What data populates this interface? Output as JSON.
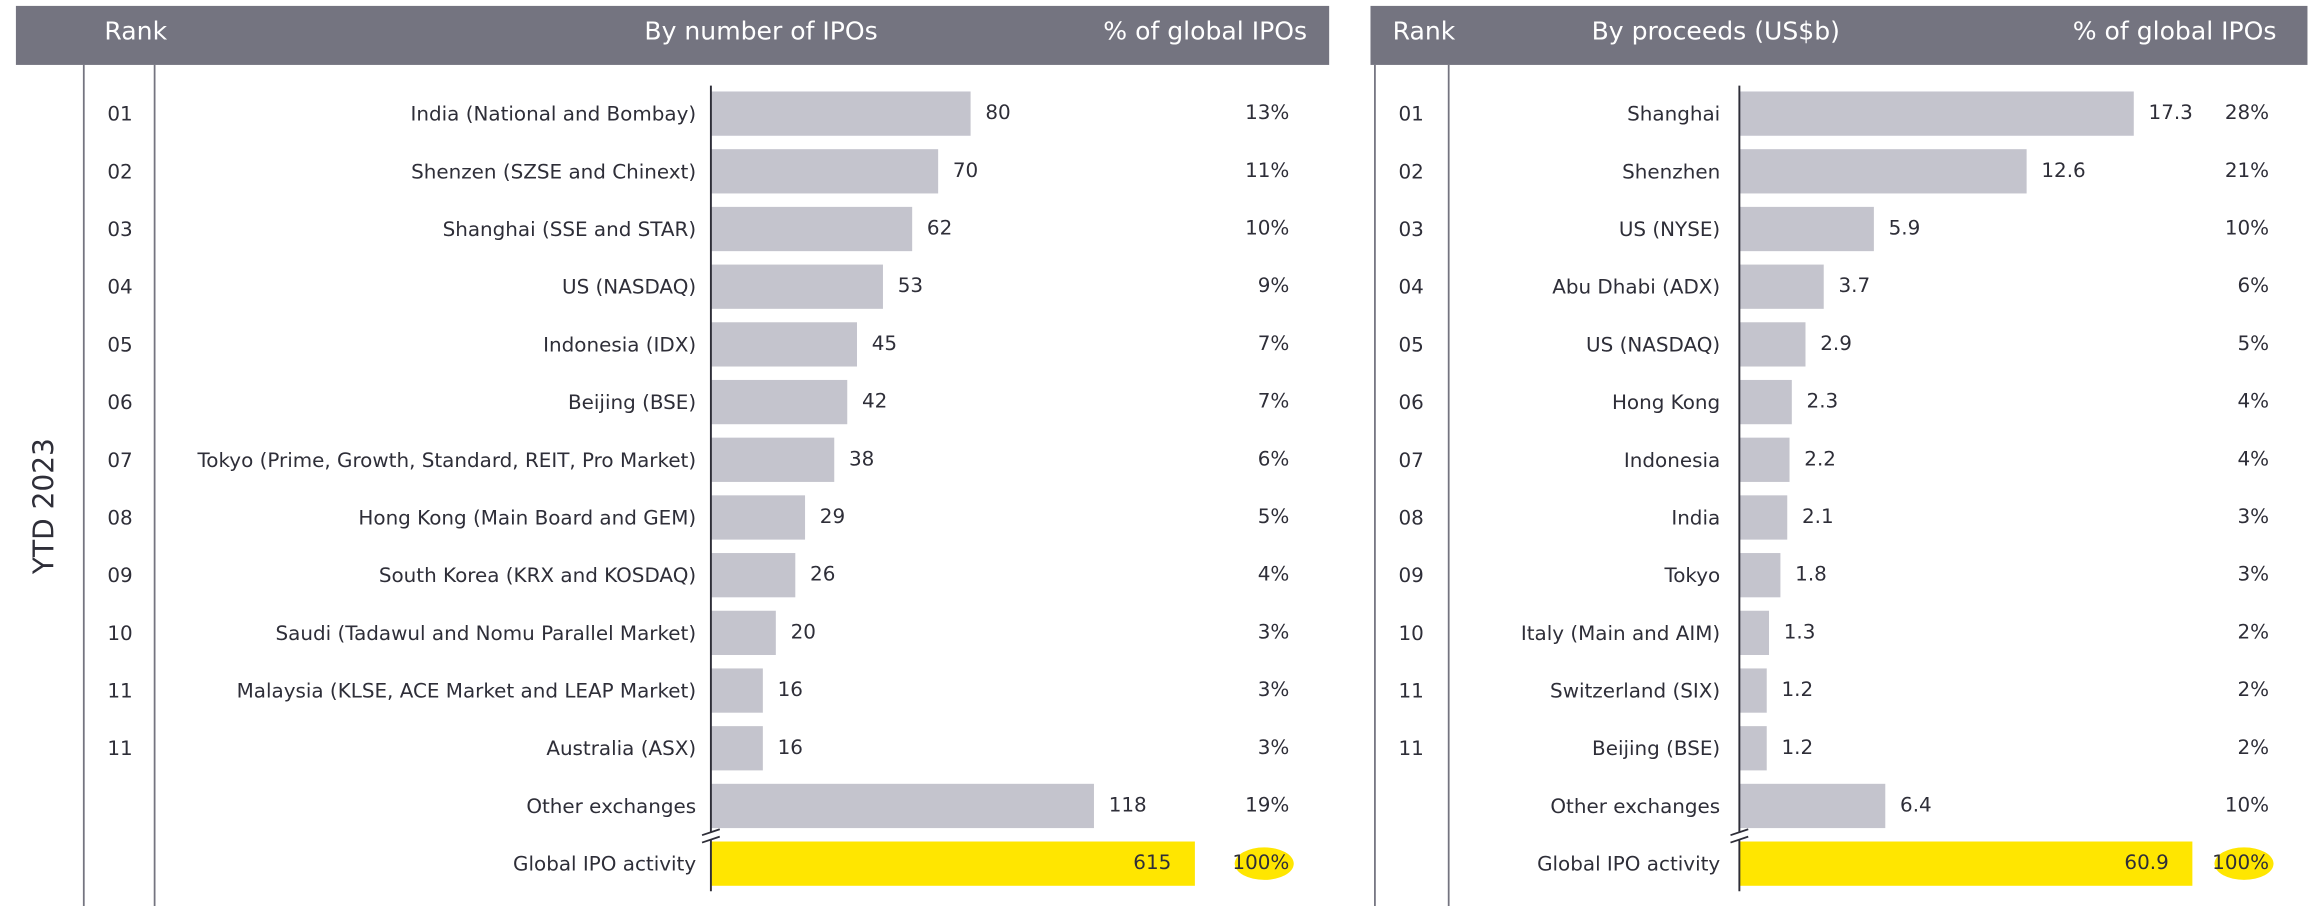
{
  "side_label": "YTD 2023",
  "chart_data": [
    {
      "type": "bar",
      "orientation": "horizontal",
      "headers": [
        "Rank",
        "By number of IPOs",
        "% of global IPOs"
      ],
      "ranks": [
        "01",
        "02",
        "03",
        "04",
        "05",
        "06",
        "07",
        "08",
        "09",
        "10",
        "11",
        "11",
        null
      ],
      "categories": [
        "India (National and Bombay)",
        "Shenzen (SZSE and Chinext)",
        "Shanghai (SSE and STAR)",
        "US (NASDAQ)",
        "Indonesia (IDX)",
        "Beijing (BSE)",
        "Tokyo (Prime, Growth, Standard, REIT, Pro Market)",
        "Hong Kong (Main Board and GEM)",
        "South Korea (KRX and KOSDAQ)",
        "Saudi (Tadawul and Nomu Parallel Market)",
        "Malaysia (KLSE, ACE Market and LEAP Market)",
        "Australia (ASX)",
        "Other exchanges"
      ],
      "values": [
        80,
        70,
        62,
        53,
        45,
        42,
        38,
        29,
        26,
        20,
        16,
        16,
        118
      ],
      "shares": [
        "13%",
        "11%",
        "10%",
        "9%",
        "7%",
        "7%",
        "6%",
        "5%",
        "4%",
        "3%",
        "3%",
        "3%",
        "19%"
      ],
      "total": {
        "label": "Global IPO activity",
        "value": 615,
        "share": "100%"
      },
      "color": "#c4c4cd",
      "total_color": "#ffe600",
      "xlim": [
        0,
        150
      ]
    },
    {
      "type": "bar",
      "orientation": "horizontal",
      "headers": [
        "Rank",
        "By proceeds (US$b)",
        "% of global IPOs"
      ],
      "ranks": [
        "01",
        "02",
        "03",
        "04",
        "05",
        "06",
        "07",
        "08",
        "09",
        "10",
        "11",
        "11",
        null
      ],
      "categories": [
        "Shanghai",
        "Shenzhen",
        "US (NYSE)",
        "Abu Dhabi (ADX)",
        "US (NASDAQ)",
        "Hong Kong",
        "Indonesia",
        "India",
        "Tokyo",
        "Italy (Main and AIM)",
        "Switzerland (SIX)",
        "Beijing (BSE)",
        "Other exchanges"
      ],
      "values": [
        17.3,
        12.6,
        5.9,
        3.7,
        2.9,
        2.3,
        2.2,
        2.1,
        1.8,
        1.3,
        1.2,
        1.2,
        6.4
      ],
      "shares": [
        "28%",
        "21%",
        "10%",
        "6%",
        "5%",
        "4%",
        "4%",
        "3%",
        "3%",
        "2%",
        "2%",
        "2%",
        "10%"
      ],
      "total": {
        "label": "Global IPO activity",
        "value": 60.9,
        "share": "100%"
      },
      "color": "#c4c4cd",
      "total_color": "#ffe600",
      "xlim": [
        0,
        20
      ]
    }
  ]
}
